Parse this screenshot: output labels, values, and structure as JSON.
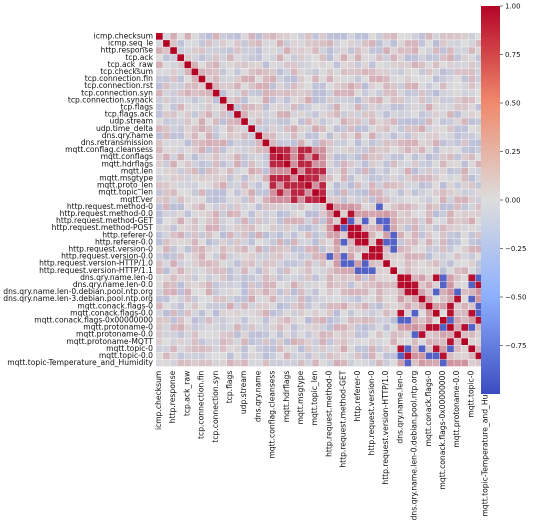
{
  "chart_data": {
    "type": "heatmap",
    "title": "",
    "xlabel": "",
    "ylabel": "",
    "colormap": "coolwarm",
    "colors": {
      "low": "#3b4cc0",
      "mid": "#dddddd",
      "high": "#b40426"
    },
    "value_range": [
      -1,
      1
    ],
    "colorbar_ticks": [
      "1.00",
      "0.75",
      "0.50",
      "0.25",
      "0.00",
      "−0.25",
      "−0.50",
      "−0.75"
    ],
    "colorbar_tick_values": [
      1.0,
      0.75,
      0.5,
      0.25,
      0.0,
      -0.25,
      -0.5,
      -0.75
    ],
    "row_labels": [
      "icmp.checksum",
      "icmp.seq_le",
      "http.response",
      "tcp.ack",
      "tcp.ack_raw",
      "tcp.checksum",
      "tcp.connection.fin",
      "tcp.connection.rst",
      "tcp.connection.syn",
      "tcp.connection.synack",
      "tcp.flags",
      "tcp.flags.ack",
      "udp.stream",
      "udp.time_delta",
      "dns.qry.name",
      "dns.retransmission",
      "mqtt.conflag.cleansess",
      "mqtt.conflags",
      "mqtt.hdrflags",
      "mqtt.len",
      "mqtt.msgtype",
      "mqtt.proto_len",
      "mqtt.topic_len",
      "mqtt.ver",
      "http.request.method-0",
      "http.request.method-0.0",
      "http.request.method-GET",
      "http.request.method-POST",
      "http.referer-0",
      "http.referer-0.0",
      "http.request.version-0",
      "http.request.version-0.0",
      "http.request.version-HTTP/1.0",
      "http.request.version-HTTP/1.1",
      "dns.qry.name.len-0",
      "dns.qry.name.len-0.0",
      "dns.qry.name.len-0.debian.pool.ntp.org",
      "dns.qry.name.len-3.debian.pool.ntp.org",
      "mqtt.conack.flags-0",
      "mqtt.conack.flags-0.0",
      "mqtt.conack.flags-0x00000000",
      "mqtt.protoname-0",
      "mqtt.protoname-0.0",
      "mqtt.protoname-MQTT",
      "mqtt.topic-0",
      "mqtt.topic-0.0",
      "mqtt.topic-Temperature_and_Humidity"
    ],
    "col_labels": [
      "icmp.checksum",
      "http.response",
      "tcp.ack_raw",
      "tcp.connection.fin",
      "tcp.connection.syn",
      "tcp.flags",
      "udp.stream",
      "dns.qry.name",
      "mqtt.conflag.cleansess",
      "mqtt.hdrflags",
      "mqtt.msgtype",
      "mqtt.topic_len",
      "http.request.method-0",
      "http.request.method-GET",
      "http.referer-0",
      "http.request.version-0",
      "http.request.version-HTTP/1.0",
      "dns.qry.name.len-0",
      "dns.qry.name.len-0.debian.pool.ntp.org",
      "mqtt.conack.flags-0",
      "mqtt.conack.flags-0x00000000",
      "mqtt.protoname-0.0",
      "mqtt.topic-0",
      "mqtt.topic-Temperature_and_Humidity"
    ],
    "clusters": [
      {
        "rows": [
          16,
          23
        ],
        "value": 0.85
      },
      {
        "rows": [
          24,
          33
        ],
        "value": 0.2
      },
      {
        "rows": [
          34,
          46
        ],
        "value": 0.25
      }
    ]
  }
}
